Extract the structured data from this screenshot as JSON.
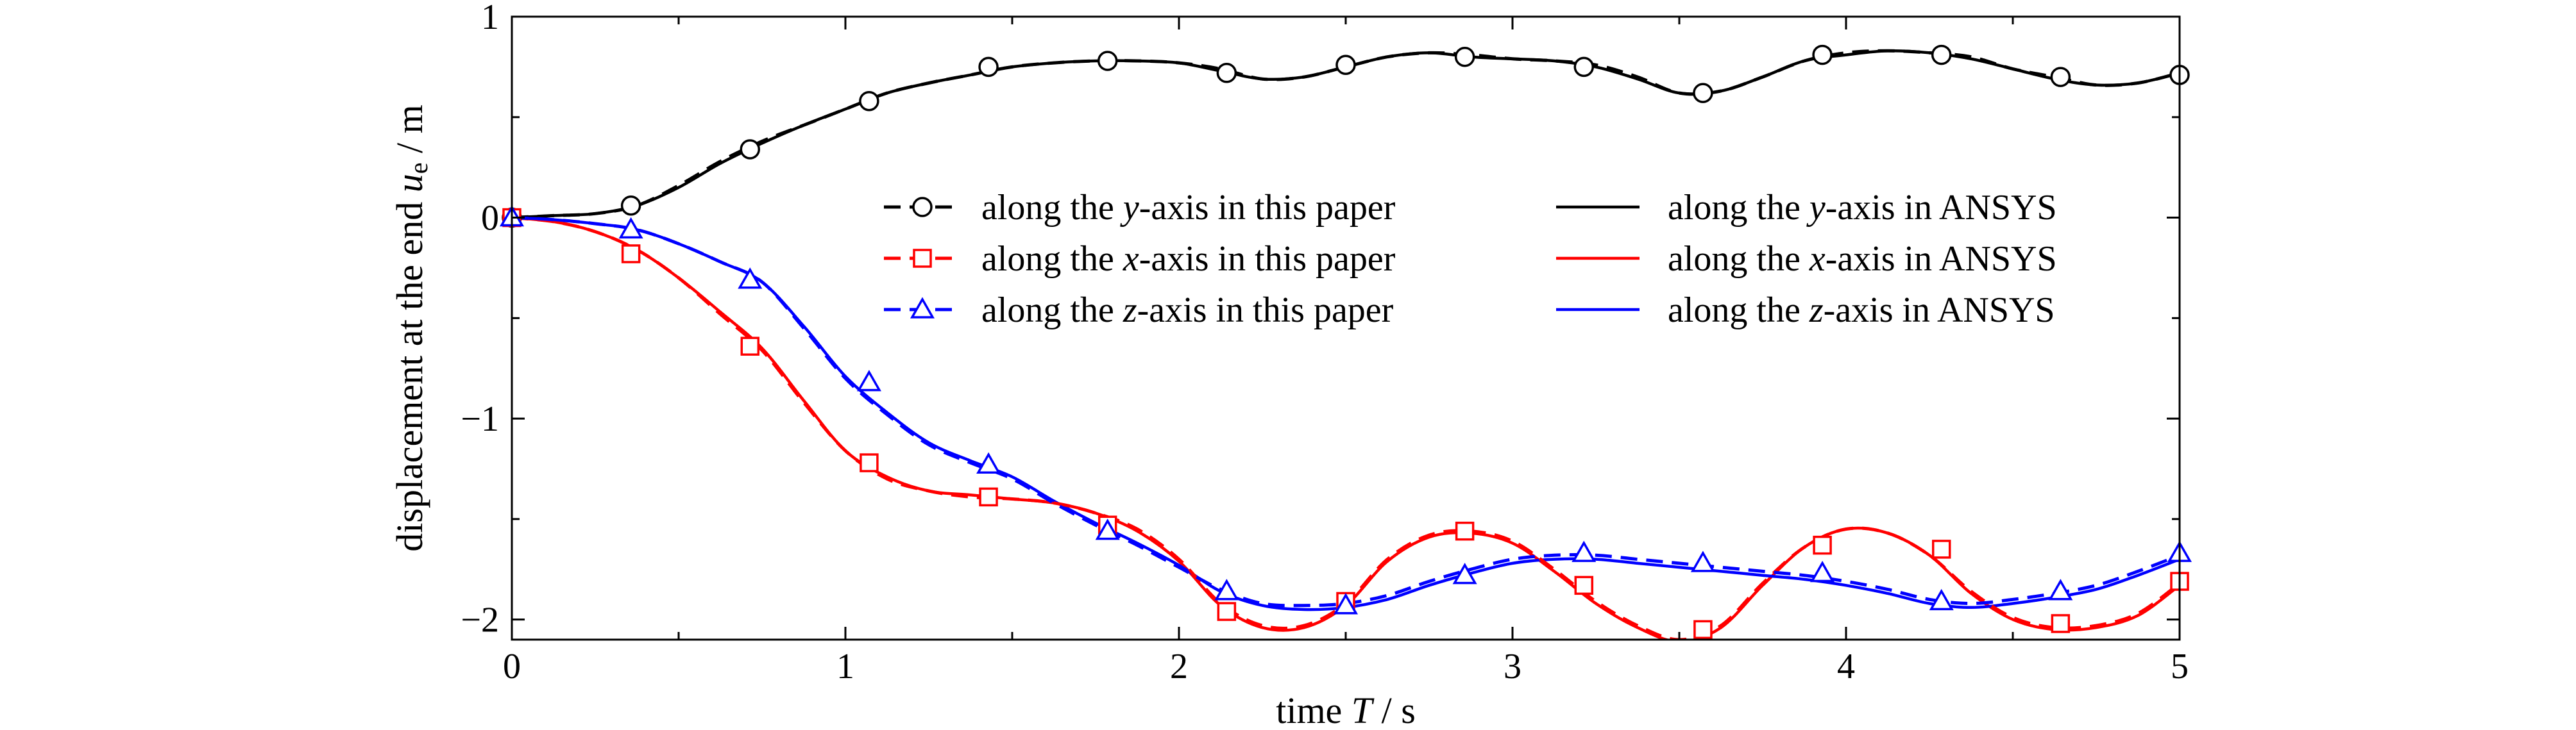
{
  "chart_data": {
    "type": "line",
    "title": "",
    "xlabel": {
      "pre": "time ",
      "var": "T",
      "post": " / s"
    },
    "ylabel": {
      "pre": "displacement at the end ",
      "var": "u",
      "sub": "e",
      "post": " / m"
    },
    "xlim": [
      0,
      5
    ],
    "ylim": [
      -2.1,
      1
    ],
    "xticks": [
      0,
      1,
      2,
      3,
      4,
      5
    ],
    "xtick_labels": [
      "0",
      "1",
      "2",
      "3",
      "4",
      "5"
    ],
    "yticks": [
      1,
      0,
      -1,
      -2
    ],
    "ytick_labels": [
      "1",
      "0",
      "−1",
      "−2"
    ],
    "grid": false,
    "legend_placement": "center",
    "x": [
      0,
      0.125,
      0.25,
      0.375,
      0.5,
      0.625,
      0.75,
      0.875,
      1,
      1.125,
      1.25,
      1.375,
      1.5,
      1.625,
      1.75,
      1.875,
      2,
      2.125,
      2.25,
      2.375,
      2.5,
      2.625,
      2.75,
      2.875,
      3,
      3.125,
      3.25,
      3.375,
      3.5,
      3.625,
      3.75,
      3.875,
      4,
      4.125,
      4.25,
      4.375,
      4.5,
      4.625,
      4.75,
      4.875,
      5
    ],
    "series": [
      {
        "name": "along the y-axis in this paper",
        "color": "#000000",
        "style": "dashed",
        "marker": "circle",
        "values": [
          0,
          0.01,
          0.02,
          0.06,
          0.16,
          0.28,
          0.38,
          0.46,
          0.54,
          0.62,
          0.67,
          0.71,
          0.75,
          0.77,
          0.78,
          0.78,
          0.77,
          0.74,
          0.69,
          0.7,
          0.75,
          0.8,
          0.82,
          0.81,
          0.79,
          0.78,
          0.76,
          0.7,
          0.62,
          0.63,
          0.7,
          0.78,
          0.82,
          0.83,
          0.82,
          0.8,
          0.74,
          0.7,
          0.66,
          0.67,
          0.72
        ],
        "marker_x": [
          0,
          0.357,
          0.714,
          1.071,
          1.429,
          1.786,
          2.143,
          2.5,
          2.857,
          3.214,
          3.571,
          3.929,
          4.286,
          4.643,
          5
        ],
        "marker_y": [
          0,
          0.06,
          0.34,
          0.58,
          0.75,
          0.78,
          0.72,
          0.76,
          0.8,
          0.75,
          0.62,
          0.81,
          0.81,
          0.7,
          0.71
        ]
      },
      {
        "name": "along the x-axis in this paper",
        "color": "#ff0000",
        "style": "dashed",
        "marker": "square",
        "values": [
          0,
          -0.02,
          -0.07,
          -0.16,
          -0.3,
          -0.48,
          -0.66,
          -0.92,
          -1.16,
          -1.3,
          -1.36,
          -1.39,
          -1.4,
          -1.42,
          -1.47,
          -1.55,
          -1.7,
          -1.92,
          -2.03,
          -2.03,
          -1.92,
          -1.7,
          -1.58,
          -1.56,
          -1.61,
          -1.75,
          -1.91,
          -2.03,
          -2.1,
          -2.03,
          -1.82,
          -1.64,
          -1.55,
          -1.57,
          -1.68,
          -1.86,
          -1.99,
          -2.04,
          -2.03,
          -1.97,
          -1.82
        ],
        "marker_x": [
          0,
          0.357,
          0.714,
          1.071,
          1.429,
          1.786,
          2.143,
          2.5,
          2.857,
          3.214,
          3.571,
          3.929,
          4.286,
          4.643,
          5
        ],
        "marker_y": [
          0,
          -0.18,
          -0.64,
          -1.22,
          -1.39,
          -1.53,
          -1.96,
          -1.91,
          -1.56,
          -1.83,
          -2.05,
          -1.63,
          -1.65,
          -2.02,
          -1.81
        ]
      },
      {
        "name": "along the z-axis in this paper",
        "color": "#0000ff",
        "style": "dashed",
        "marker": "triangle",
        "values": [
          0,
          -0.01,
          -0.03,
          -0.06,
          -0.13,
          -0.22,
          -0.32,
          -0.55,
          -0.8,
          -0.98,
          -1.13,
          -1.22,
          -1.3,
          -1.42,
          -1.53,
          -1.63,
          -1.74,
          -1.85,
          -1.92,
          -1.93,
          -1.92,
          -1.88,
          -1.81,
          -1.75,
          -1.7,
          -1.68,
          -1.68,
          -1.7,
          -1.72,
          -1.74,
          -1.76,
          -1.78,
          -1.81,
          -1.85,
          -1.9,
          -1.92,
          -1.9,
          -1.87,
          -1.83,
          -1.76,
          -1.68
        ],
        "marker_x": [
          0,
          0.357,
          0.714,
          1.071,
          1.429,
          1.786,
          2.143,
          2.5,
          2.857,
          3.214,
          3.571,
          3.929,
          4.286,
          4.643,
          5
        ],
        "marker_y": [
          0,
          -0.06,
          -0.31,
          -0.82,
          -1.23,
          -1.56,
          -1.86,
          -1.93,
          -1.78,
          -1.67,
          -1.72,
          -1.77,
          -1.91,
          -1.86,
          -1.67
        ]
      },
      {
        "name": "along the y-axis in ANSYS",
        "color": "#000000",
        "style": "solid",
        "values": [
          0,
          0.01,
          0.02,
          0.06,
          0.15,
          0.27,
          0.37,
          0.46,
          0.54,
          0.62,
          0.67,
          0.71,
          0.75,
          0.77,
          0.78,
          0.78,
          0.77,
          0.73,
          0.69,
          0.7,
          0.75,
          0.8,
          0.82,
          0.8,
          0.79,
          0.78,
          0.75,
          0.69,
          0.62,
          0.63,
          0.7,
          0.78,
          0.81,
          0.83,
          0.82,
          0.79,
          0.74,
          0.69,
          0.66,
          0.67,
          0.72
        ]
      },
      {
        "name": "along the x-axis in ANSYS",
        "color": "#ff0000",
        "style": "solid",
        "values": [
          0,
          -0.02,
          -0.07,
          -0.16,
          -0.3,
          -0.47,
          -0.65,
          -0.91,
          -1.16,
          -1.29,
          -1.36,
          -1.38,
          -1.4,
          -1.42,
          -1.47,
          -1.56,
          -1.71,
          -1.93,
          -2.04,
          -2.04,
          -1.93,
          -1.71,
          -1.59,
          -1.57,
          -1.62,
          -1.76,
          -1.92,
          -2.04,
          -2.11,
          -2.04,
          -1.83,
          -1.64,
          -1.55,
          -1.57,
          -1.68,
          -1.87,
          -2.0,
          -2.05,
          -2.04,
          -1.98,
          -1.83
        ]
      },
      {
        "name": "along the z-axis in ANSYS",
        "color": "#0000ff",
        "style": "solid",
        "values": [
          0,
          -0.01,
          -0.03,
          -0.06,
          -0.13,
          -0.22,
          -0.32,
          -0.54,
          -0.79,
          -0.97,
          -1.12,
          -1.21,
          -1.29,
          -1.41,
          -1.52,
          -1.62,
          -1.73,
          -1.86,
          -1.93,
          -1.95,
          -1.94,
          -1.9,
          -1.83,
          -1.77,
          -1.72,
          -1.7,
          -1.7,
          -1.72,
          -1.74,
          -1.76,
          -1.78,
          -1.8,
          -1.83,
          -1.87,
          -1.92,
          -1.94,
          -1.92,
          -1.89,
          -1.85,
          -1.78,
          -1.7
        ]
      }
    ],
    "legend": [
      {
        "pre": "along the ",
        "var": "y",
        "post": "-axis in this paper"
      },
      {
        "pre": "along the ",
        "var": "x",
        "post": "-axis in this paper"
      },
      {
        "pre": "along the ",
        "var": "z",
        "post": "-axis in this paper"
      },
      {
        "pre": "along the ",
        "var": "y",
        "post": "-axis in ANSYS"
      },
      {
        "pre": "along the ",
        "var": "x",
        "post": "-axis in ANSYS"
      },
      {
        "pre": "along the ",
        "var": "z",
        "post": "-axis in ANSYS"
      }
    ]
  }
}
